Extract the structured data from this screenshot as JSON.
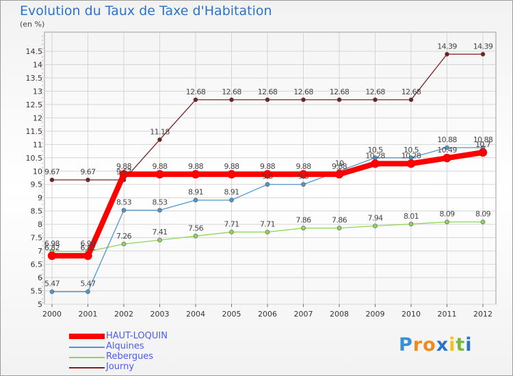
{
  "title": "Evolution du Taux de Taxe d'Habitation",
  "unit": "(en %)",
  "logo": {
    "letters": [
      "P",
      "r",
      "o",
      "x",
      "i",
      "t",
      "i"
    ],
    "colors": [
      "#3a8fd6",
      "#f08a1d",
      "#f08a1d",
      "#2b73c9",
      "#f2c21b",
      "#7ab83a",
      "#2b73c9"
    ]
  },
  "chart_data": {
    "type": "line",
    "x": [
      "2000",
      "2001",
      "2002",
      "2003",
      "2004",
      "2005",
      "2006",
      "2007",
      "2008",
      "2009",
      "2010",
      "2011",
      "2012"
    ],
    "ylim": [
      5,
      14.5
    ],
    "yticks": [
      "5",
      "5.5",
      "6",
      "6.5",
      "7",
      "7.5",
      "8",
      "8.5",
      "9",
      "9.5",
      "10",
      "10.5",
      "11",
      "11.5",
      "12",
      "12.5",
      "13",
      "13.5",
      "14",
      "14.5"
    ],
    "grid": true,
    "legend_position": "bottom-left",
    "series": [
      {
        "name": "HAUT-LOQUIN",
        "color": "#ff0000",
        "values": [
          6.82,
          6.82,
          9.88,
          9.88,
          9.88,
          9.88,
          9.88,
          9.88,
          9.88,
          10.28,
          10.28,
          10.49,
          10.7
        ],
        "labels": [
          "6.82",
          "6.82",
          "9.88",
          "9.88",
          "9.88",
          "9.88",
          "9.88",
          "9.88",
          "9.88",
          "10.28",
          "10.28",
          "10.49",
          "10.7"
        ]
      },
      {
        "name": "Alquines",
        "color": "#4f95cf",
        "values": [
          5.47,
          5.47,
          8.53,
          8.53,
          8.91,
          8.91,
          9.5,
          9.5,
          10,
          10.5,
          10.5,
          10.88,
          10.88
        ],
        "labels": [
          "5.47",
          "5.47",
          "8.53",
          "8.53",
          "8.91",
          "8.91",
          "9.5",
          "9.5",
          "10",
          "10.5",
          "10.5",
          "10.88",
          "10.88"
        ]
      },
      {
        "name": "Rebergues",
        "color": "#8ed657",
        "values": [
          6.98,
          6.98,
          7.26,
          7.41,
          7.56,
          7.71,
          7.71,
          7.86,
          7.86,
          7.94,
          8.01,
          8.09,
          8.09
        ],
        "labels": [
          "6.98",
          "6.98",
          "7.26",
          "7.41",
          "7.56",
          "7.71",
          "7.71",
          "7.86",
          "7.86",
          "7.94",
          "8.01",
          "8.09",
          "8.09"
        ]
      },
      {
        "name": "Journy",
        "color": "#7a1f1f",
        "values": [
          9.67,
          9.67,
          9.67,
          11.18,
          12.68,
          12.68,
          12.68,
          12.68,
          12.68,
          12.68,
          12.68,
          14.39,
          14.39
        ],
        "labels": [
          "9.67",
          "9.67",
          "9.67",
          "11.18",
          "12.68",
          "12.68",
          "12.68",
          "12.68",
          "12.68",
          "12.68",
          "12.68",
          "14.39",
          "14.39"
        ]
      }
    ]
  }
}
